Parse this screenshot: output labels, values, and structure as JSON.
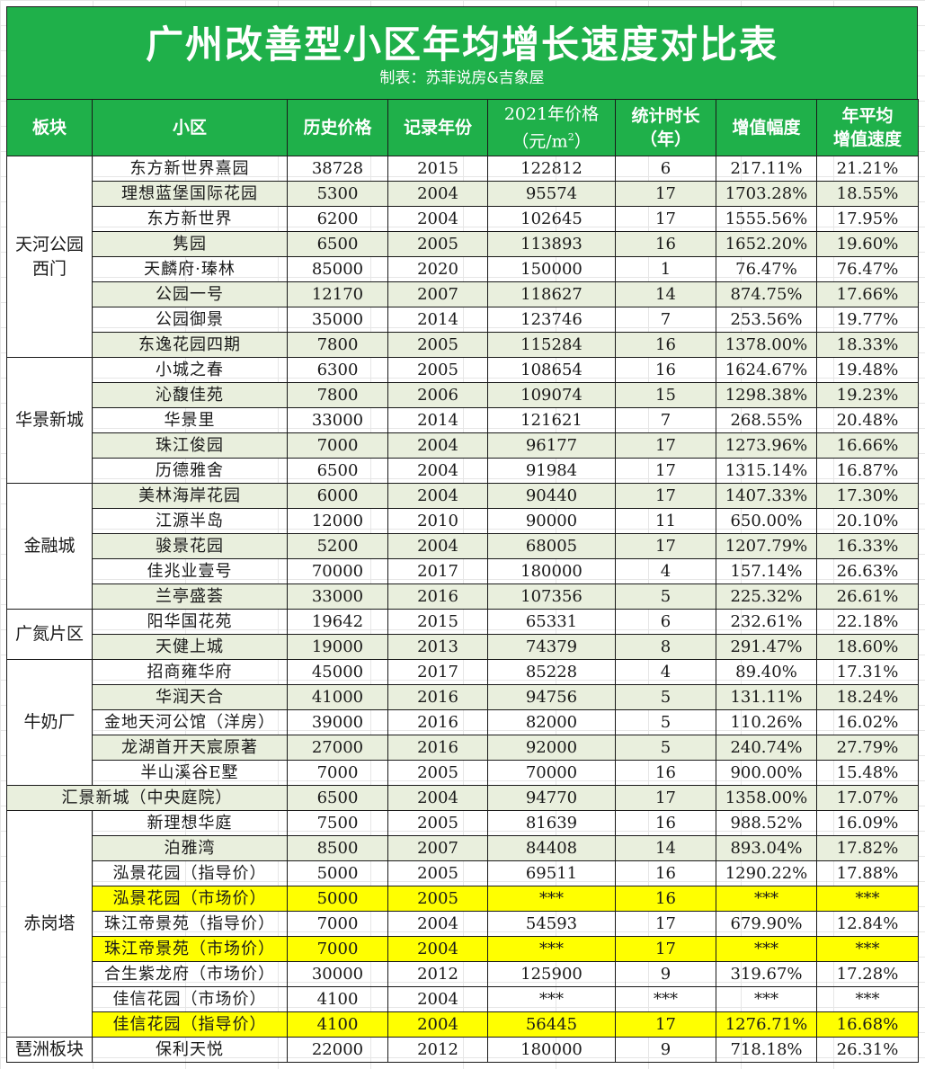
{
  "header": {
    "title": "广州改善型小区年均增长速度对比表",
    "subtitle": "制表：苏菲说房&吉象屋"
  },
  "colors": {
    "header_green": "#1fb04a",
    "alt_row": "#e9efdd",
    "highlight_yellow": "#ffff00"
  },
  "columns": {
    "district": "板块",
    "community": "小区",
    "hist_price": "历史价格",
    "record_year": "记录年份",
    "price_2021_line1": "2021年价格",
    "price_2021_line2_pre": "（元/m",
    "price_2021_sup": "2",
    "price_2021_line2_post": "）",
    "duration_line1": "统计时长",
    "duration_line2": "（年）",
    "growth": "增值幅度",
    "annual_line1": "年平均",
    "annual_line2": "增值速度"
  },
  "districts": {
    "d1": "天河公园西门",
    "d2": "华景新城",
    "d3": "金融城",
    "d4": "广氮片区",
    "d5": "牛奶厂",
    "d7": "赤岗塔",
    "d8": "琶洲板块"
  },
  "rows": [
    {
      "name": "东方新世界熹园",
      "hist": "38728",
      "year": "2015",
      "p2021": "122812",
      "dur": "6",
      "growth": "217.11%",
      "annual": "21.21%"
    },
    {
      "name": "理想蓝堡国际花园",
      "hist": "5300",
      "year": "2004",
      "p2021": "95574",
      "dur": "17",
      "growth": "1703.28%",
      "annual": "18.55%"
    },
    {
      "name": "东方新世界",
      "hist": "6200",
      "year": "2004",
      "p2021": "102645",
      "dur": "17",
      "growth": "1555.56%",
      "annual": "17.95%"
    },
    {
      "name": "隽园",
      "hist": "6500",
      "year": "2005",
      "p2021": "113893",
      "dur": "16",
      "growth": "1652.20%",
      "annual": "19.60%"
    },
    {
      "name": "天麟府·瑧林",
      "hist": "85000",
      "year": "2020",
      "p2021": "150000",
      "dur": "1",
      "growth": "76.47%",
      "annual": "76.47%"
    },
    {
      "name": "公园一号",
      "hist": "12170",
      "year": "2007",
      "p2021": "118627",
      "dur": "14",
      "growth": "874.75%",
      "annual": "17.66%"
    },
    {
      "name": "公园御景",
      "hist": "35000",
      "year": "2014",
      "p2021": "123746",
      "dur": "7",
      "growth": "253.56%",
      "annual": "19.77%"
    },
    {
      "name": "东逸花园四期",
      "hist": "7800",
      "year": "2005",
      "p2021": "115284",
      "dur": "16",
      "growth": "1378.00%",
      "annual": "18.33%"
    },
    {
      "name": "小城之春",
      "hist": "6300",
      "year": "2005",
      "p2021": "108654",
      "dur": "16",
      "growth": "1624.67%",
      "annual": "19.48%"
    },
    {
      "name": "沁馥佳苑",
      "hist": "7800",
      "year": "2006",
      "p2021": "109074",
      "dur": "15",
      "growth": "1298.38%",
      "annual": "19.23%"
    },
    {
      "name": "华景里",
      "hist": "33000",
      "year": "2014",
      "p2021": "121621",
      "dur": "7",
      "growth": "268.55%",
      "annual": "20.48%"
    },
    {
      "name": "珠江俊园",
      "hist": "7000",
      "year": "2004",
      "p2021": "96177",
      "dur": "17",
      "growth": "1273.96%",
      "annual": "16.66%"
    },
    {
      "name": "历德雅舍",
      "hist": "6500",
      "year": "2004",
      "p2021": "91984",
      "dur": "17",
      "growth": "1315.14%",
      "annual": "16.87%"
    },
    {
      "name": "美林海岸花园",
      "hist": "6000",
      "year": "2004",
      "p2021": "90440",
      "dur": "17",
      "growth": "1407.33%",
      "annual": "17.30%"
    },
    {
      "name": "江源半岛",
      "hist": "12000",
      "year": "2010",
      "p2021": "90000",
      "dur": "11",
      "growth": "650.00%",
      "annual": "20.10%"
    },
    {
      "name": "骏景花园",
      "hist": "5200",
      "year": "2004",
      "p2021": "68005",
      "dur": "17",
      "growth": "1207.79%",
      "annual": "16.33%"
    },
    {
      "name": "佳兆业壹号",
      "hist": "70000",
      "year": "2017",
      "p2021": "180000",
      "dur": "4",
      "growth": "157.14%",
      "annual": "26.63%"
    },
    {
      "name": "兰亭盛荟",
      "hist": "33000",
      "year": "2016",
      "p2021": "107356",
      "dur": "5",
      "growth": "225.32%",
      "annual": "26.61%"
    },
    {
      "name": "阳华国花苑",
      "hist": "19642",
      "year": "2015",
      "p2021": "65331",
      "dur": "6",
      "growth": "232.61%",
      "annual": "22.18%"
    },
    {
      "name": "天健上城",
      "hist": "19000",
      "year": "2013",
      "p2021": "74379",
      "dur": "8",
      "growth": "291.47%",
      "annual": "18.60%"
    },
    {
      "name": "招商雍华府",
      "hist": "45000",
      "year": "2017",
      "p2021": "85228",
      "dur": "4",
      "growth": "89.40%",
      "annual": "17.31%"
    },
    {
      "name": "华润天合",
      "hist": "41000",
      "year": "2016",
      "p2021": "94756",
      "dur": "5",
      "growth": "131.11%",
      "annual": "18.24%"
    },
    {
      "name": "金地天河公馆（洋房）",
      "hist": "39000",
      "year": "2016",
      "p2021": "82000",
      "dur": "5",
      "growth": "110.26%",
      "annual": "16.02%"
    },
    {
      "name": "龙湖首开天宸原著",
      "hist": "27000",
      "year": "2016",
      "p2021": "92000",
      "dur": "5",
      "growth": "240.74%",
      "annual": "27.79%"
    },
    {
      "name": "半山溪谷E墅",
      "hist": "7000",
      "year": "2005",
      "p2021": "70000",
      "dur": "16",
      "growth": "900.00%",
      "annual": "15.48%"
    },
    {
      "name": "汇景新城（中央庭院）",
      "hist": "6500",
      "year": "2004",
      "p2021": "94770",
      "dur": "17",
      "growth": "1358.00%",
      "annual": "17.07%"
    },
    {
      "name": "新理想华庭",
      "hist": "7500",
      "year": "2005",
      "p2021": "81639",
      "dur": "16",
      "growth": "988.52%",
      "annual": "16.09%"
    },
    {
      "name": "泊雅湾",
      "hist": "8500",
      "year": "2007",
      "p2021": "84408",
      "dur": "14",
      "growth": "893.04%",
      "annual": "17.82%"
    },
    {
      "name": "泓景花园（指导价）",
      "hist": "5000",
      "year": "2005",
      "p2021": "69511",
      "dur": "16",
      "growth": "1290.22%",
      "annual": "17.88%"
    },
    {
      "name": "泓景花园（市场价）",
      "hist": "5000",
      "year": "2005",
      "p2021": "***",
      "dur": "16",
      "growth": "***",
      "annual": "***"
    },
    {
      "name": "珠江帝景苑（指导价）",
      "hist": "7000",
      "year": "2004",
      "p2021": "54593",
      "dur": "17",
      "growth": "679.90%",
      "annual": "12.84%"
    },
    {
      "name": "珠江帝景苑（市场价）",
      "hist": "7000",
      "year": "2004",
      "p2021": "***",
      "dur": "17",
      "growth": "***",
      "annual": "***"
    },
    {
      "name": "合生紫龙府（市场价）",
      "hist": "30000",
      "year": "2012",
      "p2021": "125900",
      "dur": "9",
      "growth": "319.67%",
      "annual": "17.28%"
    },
    {
      "name": "佳信花园（市场价）",
      "hist": "4100",
      "year": "2004",
      "p2021": "***",
      "dur": "***",
      "growth": "***",
      "annual": "***"
    },
    {
      "name": "佳信花园（指导价）",
      "hist": "4100",
      "year": "2004",
      "p2021": "56445",
      "dur": "17",
      "growth": "1276.71%",
      "annual": "16.68%"
    },
    {
      "name": "保利天悦",
      "hist": "22000",
      "year": "2012",
      "p2021": "180000",
      "dur": "9",
      "growth": "718.18%",
      "annual": "26.31%"
    }
  ]
}
